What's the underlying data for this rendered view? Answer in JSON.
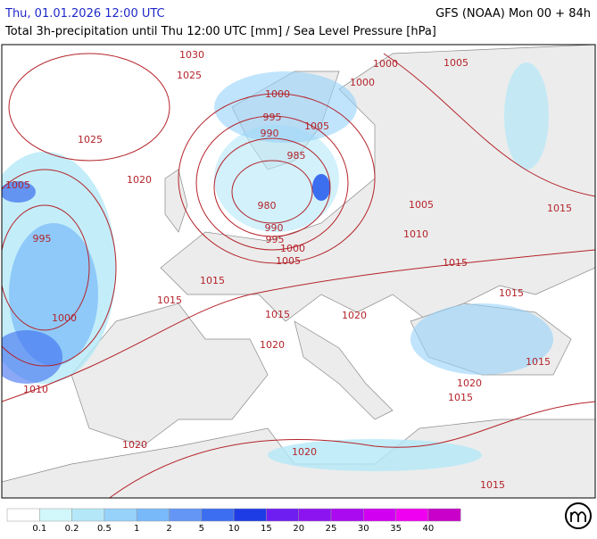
{
  "header": {
    "datetime": "Thu, 01.01.2026 12:00 UTC",
    "model": "GFS (NOAA) Mon 00 + 84h",
    "subtitle": "Total 3h-precipitation until Thu 12:00 UTC [mm] / Sea Level Pressure [hPa]"
  },
  "isobar_labels": [
    "1030",
    "1025",
    "1000",
    "1005",
    "1000",
    "1000",
    "995",
    "1005",
    "990",
    "1025",
    "985",
    "1020",
    "1005",
    "980",
    "1005",
    "1015",
    "990",
    "1010",
    "995",
    "995",
    "1000",
    "1005",
    "1015",
    "1015",
    "1015",
    "1015",
    "1015",
    "1020",
    "1000",
    "1020",
    "1015",
    "1010",
    "1020",
    "1015",
    "1020",
    "1020",
    "1015"
  ],
  "legend": {
    "colors": [
      "#ffffff",
      "#d2f7fa",
      "#b4e8f8",
      "#96d2fa",
      "#78b9fa",
      "#6496f5",
      "#3c6ef0",
      "#1e3ce6",
      "#6e1ef0",
      "#8c14f0",
      "#aa0af0",
      "#d200f0",
      "#f000f0",
      "#c800c8"
    ],
    "labels": [
      0.1,
      0.2,
      0.5,
      1,
      2,
      5,
      10,
      15,
      20,
      25,
      30,
      35,
      40
    ]
  }
}
